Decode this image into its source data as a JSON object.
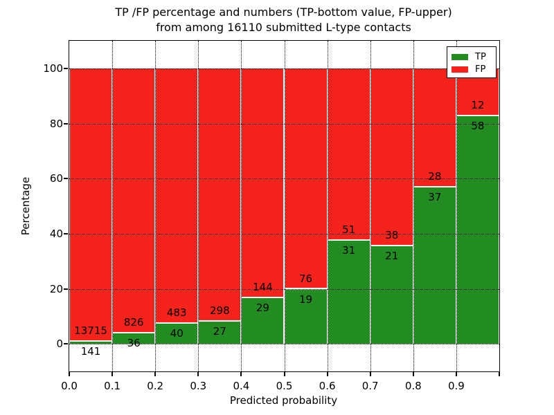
{
  "title": {
    "line1": "TP /FP percentage and numbers (TP-bottom value, FP-upper)",
    "line2": "from among 16110 submitted L-type contacts"
  },
  "axes": {
    "xlabel": "Predicted probability",
    "ylabel": "Percentage",
    "xtick_labels": [
      "0.0",
      "0.1",
      "0.2",
      "0.3",
      "0.4",
      "0.5",
      "0.6",
      "0.7",
      "0.8",
      "0.9"
    ],
    "ytick_labels": [
      "0",
      "20",
      "40",
      "60",
      "80",
      "100"
    ],
    "ytick_values": [
      0,
      20,
      40,
      60,
      80,
      100
    ]
  },
  "legend": {
    "items": [
      {
        "label": "TP",
        "color": "#228b22"
      },
      {
        "label": "FP",
        "color": "#f4231c"
      }
    ]
  },
  "chart_data": {
    "type": "bar",
    "stacked": true,
    "normalized": "percent",
    "title": "TP /FP percentage and numbers (TP-bottom value, FP-upper) from among 16110 submitted L-type contacts",
    "xlabel": "Predicted probability",
    "ylabel": "Percentage",
    "xlim": [
      0.0,
      1.0
    ],
    "ylim": [
      -10,
      110
    ],
    "bin_width": 0.1,
    "grid": "dotted",
    "legend_position": "upper right",
    "total_contacts": 16110,
    "categories": [
      "0.0-0.1",
      "0.1-0.2",
      "0.2-0.3",
      "0.3-0.4",
      "0.4-0.5",
      "0.5-0.6",
      "0.6-0.7",
      "0.7-0.8",
      "0.8-0.9",
      "0.9-1.0"
    ],
    "series": [
      {
        "name": "TP",
        "color": "#228b22",
        "counts": [
          141,
          36,
          40,
          27,
          29,
          19,
          31,
          21,
          37,
          58
        ],
        "percent": [
          1.0,
          4.2,
          7.6,
          8.3,
          16.8,
          20.0,
          37.8,
          35.6,
          56.9,
          82.9
        ]
      },
      {
        "name": "FP",
        "color": "#f4231c",
        "counts": [
          13715,
          826,
          483,
          298,
          144,
          76,
          51,
          38,
          28,
          12
        ],
        "percent": [
          99.0,
          95.8,
          92.4,
          91.7,
          83.2,
          80.0,
          62.2,
          64.4,
          43.1,
          17.1
        ]
      }
    ]
  }
}
